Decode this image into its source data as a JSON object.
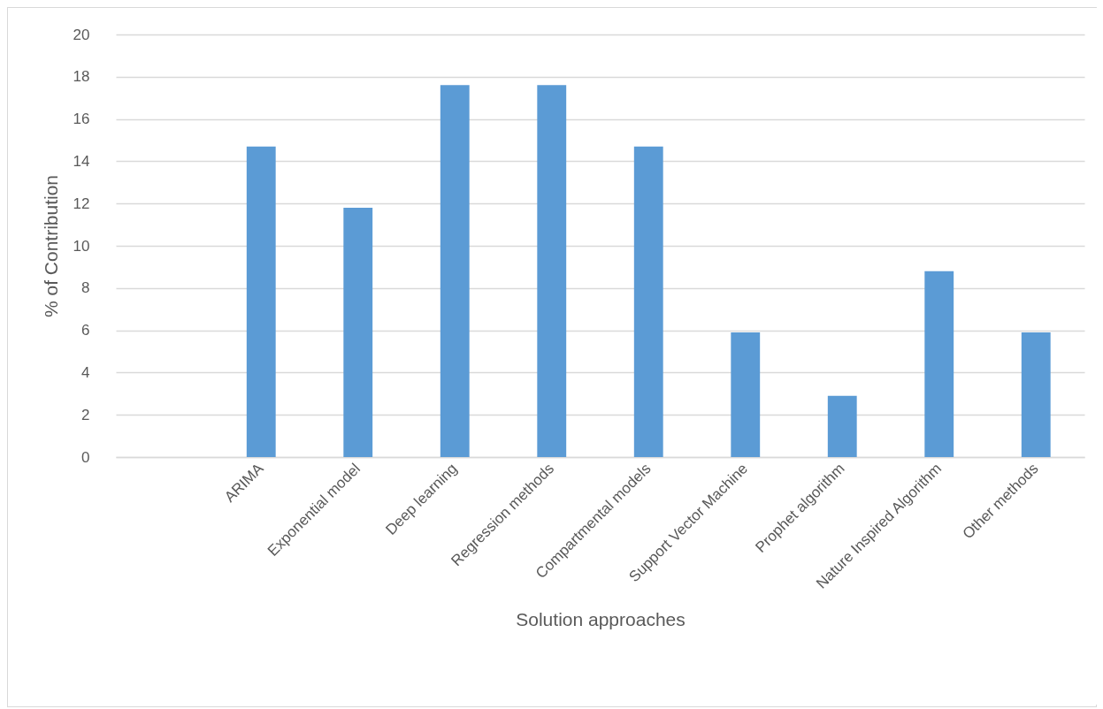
{
  "chart_data": {
    "type": "bar",
    "xlabel": "Solution approaches",
    "ylabel": "% of Contribution",
    "categories": [
      null,
      "ARIMA",
      "Exponential model",
      "Deep learning",
      "Regression methods",
      "Compartmental models",
      "Support Vector Machine",
      "Prophet algorithm",
      "Nature Inspired Algorithm",
      "Other methods"
    ],
    "values": [
      null,
      14.7,
      11.8,
      17.6,
      17.6,
      14.7,
      5.9,
      2.9,
      8.8,
      5.9
    ],
    "color": "#5b9bd5",
    "ylim": [
      0,
      20
    ],
    "yticks": [
      0,
      2,
      4,
      6,
      8,
      10,
      12,
      14,
      16,
      18,
      20
    ],
    "grid": "y"
  }
}
